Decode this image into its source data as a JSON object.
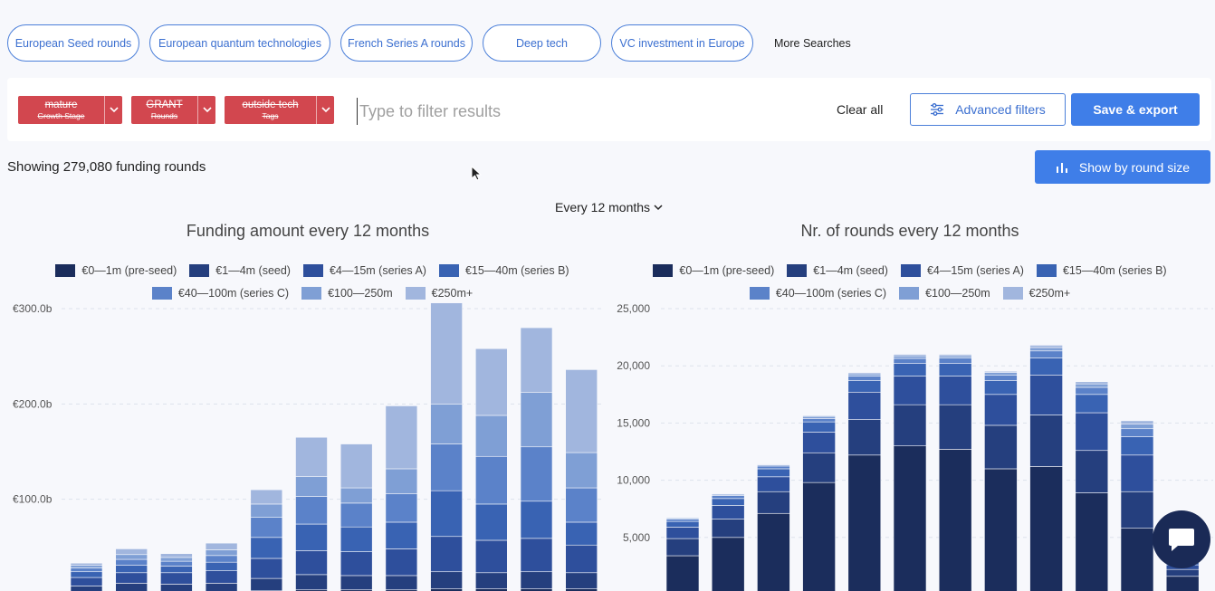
{
  "searches": {
    "chips": [
      "European Seed rounds",
      "European quantum technologies",
      "French Series A rounds",
      "Deep tech",
      "VC investment in Europe"
    ],
    "more_label": "More Searches"
  },
  "filters": {
    "tags": [
      {
        "main": "mature",
        "sub": "Growth Stage"
      },
      {
        "main": "GRANT",
        "sub": "Rounds"
      },
      {
        "main": "outside tech",
        "sub": "Tags"
      }
    ],
    "placeholder": "Type to filter results",
    "clear_label": "Clear all",
    "advanced_label": "Advanced filters",
    "save_label": "Save & export"
  },
  "results": {
    "showing_text": "Showing 279,080 funding rounds",
    "round_size_label": "Show by round size",
    "period_label": "Every 12 months"
  },
  "colors": {
    "accent": "#3f7ee8",
    "tag_red": "#d2474f",
    "series": [
      "#1b2d5c",
      "#253f7e",
      "#2e4f9c",
      "#3963b3",
      "#5b82c9",
      "#7f9fd5",
      "#a1b6de"
    ]
  },
  "legend": [
    "€0—1m (pre-seed)",
    "€1—4m (seed)",
    "€4—15m (series A)",
    "€15—40m (series B)",
    "€40—100m (series C)",
    "€100—250m",
    "€250m+"
  ],
  "chart_data": [
    {
      "type": "bar",
      "stacked": true,
      "title": "Funding amount every 12 months",
      "ylim": [
        0,
        300
      ],
      "y_ticks": [
        "€300.0b",
        "€200.0b",
        "€100.0b"
      ],
      "y_tick_values": [
        300,
        200,
        100
      ],
      "grid": true,
      "legend_position": "top",
      "series": [
        {
          "name": "€0—1m (pre-seed)",
          "values": [
            2,
            3,
            3,
            3,
            4,
            5,
            5,
            5,
            6,
            6,
            6,
            6
          ]
        },
        {
          "name": "€1—4m (seed)",
          "values": [
            7,
            9,
            8,
            9,
            13,
            16,
            15,
            15,
            18,
            17,
            18,
            17
          ]
        },
        {
          "name": "€4—15m (series A)",
          "values": [
            9,
            11,
            12,
            13,
            21,
            25,
            25,
            28,
            37,
            34,
            35,
            29
          ]
        },
        {
          "name": "€15—40m (series B)",
          "values": [
            6,
            8,
            7,
            9,
            22,
            28,
            26,
            28,
            48,
            38,
            39,
            24
          ]
        },
        {
          "name": "€40—100m (series C)",
          "values": [
            4,
            6,
            5,
            7,
            21,
            29,
            25,
            30,
            49,
            50,
            57,
            36
          ]
        },
        {
          "name": "€100—250m",
          "values": [
            3,
            5,
            4,
            6,
            14,
            21,
            16,
            26,
            42,
            43,
            57,
            37
          ]
        },
        {
          "name": "€250m+",
          "values": [
            2,
            6,
            4,
            7,
            15,
            41,
            46,
            66,
            106,
            70,
            68,
            87
          ]
        }
      ]
    },
    {
      "type": "bar",
      "stacked": true,
      "title": "Nr. of rounds every 12 months",
      "ylim": [
        0,
        25000
      ],
      "y_ticks": [
        "25,000",
        "20,000",
        "15,000",
        "10,000",
        "5,000"
      ],
      "y_tick_values": [
        25000,
        20000,
        15000,
        10000,
        5000
      ],
      "grid": true,
      "legend_position": "top",
      "series": [
        {
          "name": "€0—1m (pre-seed)",
          "values": [
            3400,
            5000,
            7100,
            9800,
            12200,
            13000,
            12700,
            11000,
            11200,
            8900,
            5800,
            1600
          ]
        },
        {
          "name": "€1—4m (seed)",
          "values": [
            1500,
            1600,
            1900,
            2600,
            3100,
            3600,
            3900,
            3800,
            4500,
            3700,
            3200,
            600
          ]
        },
        {
          "name": "€4—15m (series A)",
          "values": [
            1000,
            1200,
            1300,
            1800,
            2400,
            2500,
            2500,
            2700,
            3500,
            3300,
            3200,
            400
          ]
        },
        {
          "name": "€15—40m (series B)",
          "values": [
            500,
            600,
            700,
            900,
            1000,
            1100,
            1100,
            1200,
            1500,
            1600,
            1600,
            200
          ]
        },
        {
          "name": "€40—100m (series C)",
          "values": [
            200,
            260,
            240,
            300,
            400,
            450,
            480,
            500,
            600,
            620,
            700,
            80
          ]
        },
        {
          "name": "€100—250m",
          "values": [
            100,
            110,
            110,
            180,
            200,
            220,
            200,
            220,
            300,
            300,
            400,
            40
          ]
        },
        {
          "name": "€250m+",
          "values": [
            40,
            50,
            50,
            70,
            110,
            130,
            120,
            100,
            200,
            190,
            300,
            20
          ]
        }
      ]
    }
  ]
}
